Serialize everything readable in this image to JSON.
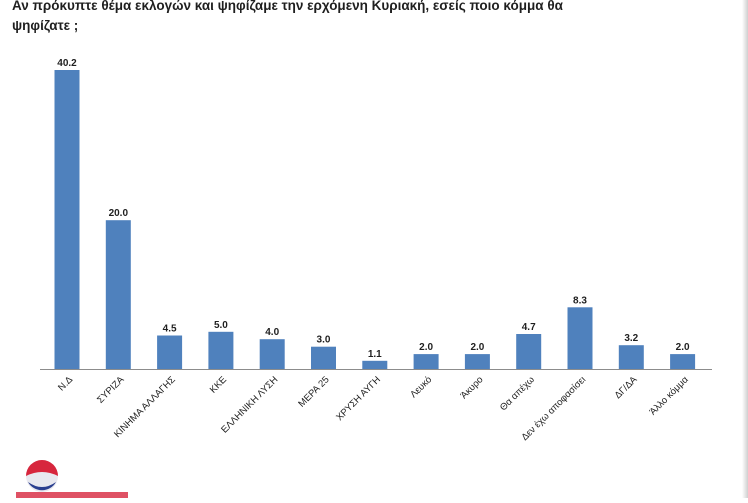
{
  "title_lines": [
    "Αν πρόκυπτε θέμα εκλογών και ψηφίζαμε την ερχόμενη Κυριακή, εσείς ποιο κόμμα θα",
    "ψηφίζατε ;"
  ],
  "colors": {
    "bar": "#4f81bd",
    "text": "#1f1f1f",
    "axis": "#8c8c8c"
  },
  "chart_data": {
    "type": "bar",
    "categories": [
      "Ν.Δ",
      "ΣΥΡΙΖΑ",
      "ΚΙΝΗΜΑ ΑΛΛΑΓΗΣ",
      "ΚΚΕ",
      "ΕΛΛΗΝΙΚΗ ΛΥΣΗ",
      "ΜΕΡΑ 25",
      "ΧΡΥΣΗ ΑΥΓΗ",
      "Λευκό",
      "Άκυρο",
      "Θα απέχω",
      "Δεν έχω αποφασίσει",
      "ΔΓ/ΔΑ",
      "Άλλο κόμμα"
    ],
    "values": [
      40.2,
      20.0,
      4.5,
      5.0,
      4.0,
      3.0,
      1.1,
      2.0,
      2.0,
      4.7,
      8.3,
      3.2,
      2.0
    ],
    "value_labels": [
      "40.2",
      "20.0",
      "4.5",
      "5.0",
      "4.0",
      "3.0",
      "1.1",
      "2.0",
      "2.0",
      "4.7",
      "8.3",
      "3.2",
      "2.0"
    ],
    "title": "",
    "xlabel": "",
    "ylabel": "",
    "ylim": [
      0,
      40.2
    ],
    "grid": false,
    "legend": "none"
  }
}
